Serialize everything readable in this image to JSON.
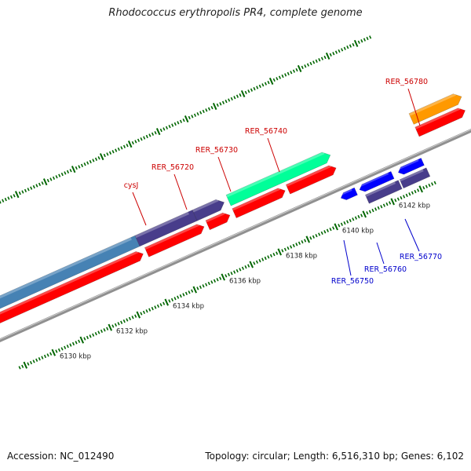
{
  "title": "Rhodococcus erythropolis PR4, complete genome",
  "footer": {
    "accession": "Accession: NC_012490",
    "topology": "Topology: circular; Length: 6,516,310 bp; Genes: 6,102"
  },
  "colors": {
    "tick": "#006600",
    "backbone": "#909090",
    "forward_label": "#cc0000",
    "reverse_label": "#0000cc",
    "red_feature": "#ff0000",
    "slate_feature": "#483d8b",
    "steel_feature": "#4682b4",
    "green_feature": "#00ff99",
    "orange_feature": "#ff9900",
    "blue_feature": "#0000ff"
  },
  "scale": {
    "unit": "kbp",
    "major_ticks": [
      {
        "label": "6130 kbp"
      },
      {
        "label": "6132 kbp"
      },
      {
        "label": "6134 kbp"
      },
      {
        "label": "6136 kbp"
      },
      {
        "label": "6138 kbp"
      },
      {
        "label": "6140 kbp"
      },
      {
        "label": "6142 kbp"
      }
    ]
  },
  "gene_labels": {
    "forward": [
      "cysJ",
      "RER_56720",
      "RER_56730",
      "RER_56740",
      "RER_56780"
    ],
    "reverse": [
      "RER_56750",
      "RER_56760",
      "RER_56770"
    ]
  }
}
